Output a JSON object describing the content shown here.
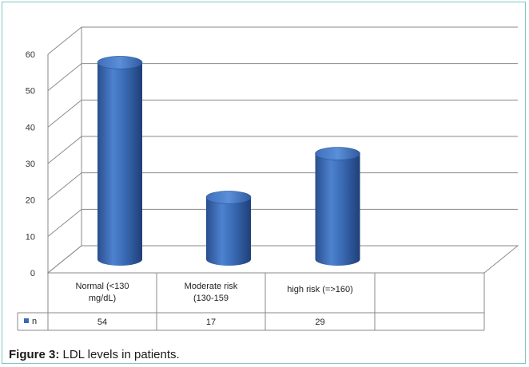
{
  "chart_data": {
    "type": "bar",
    "categories": [
      "Normal (<130 mg/dL)",
      "Moderate risk (130-159",
      "high risk (=>160)"
    ],
    "category_lines": [
      [
        "Normal (<130",
        "mg/dL)"
      ],
      [
        "Moderate risk",
        "(130-159"
      ],
      [
        "high risk (=>160)"
      ]
    ],
    "series": [
      {
        "name": "n",
        "values": [
          54,
          17,
          29
        ],
        "color": "#3a68b2"
      }
    ],
    "ylim": [
      0,
      60
    ],
    "yticks": [
      0,
      10,
      20,
      30,
      40,
      50,
      60
    ],
    "grid": true,
    "legend": "data table",
    "style": "3d cylinder"
  },
  "caption": {
    "label": "Figure 3:",
    "text": " LDL levels in patients."
  }
}
